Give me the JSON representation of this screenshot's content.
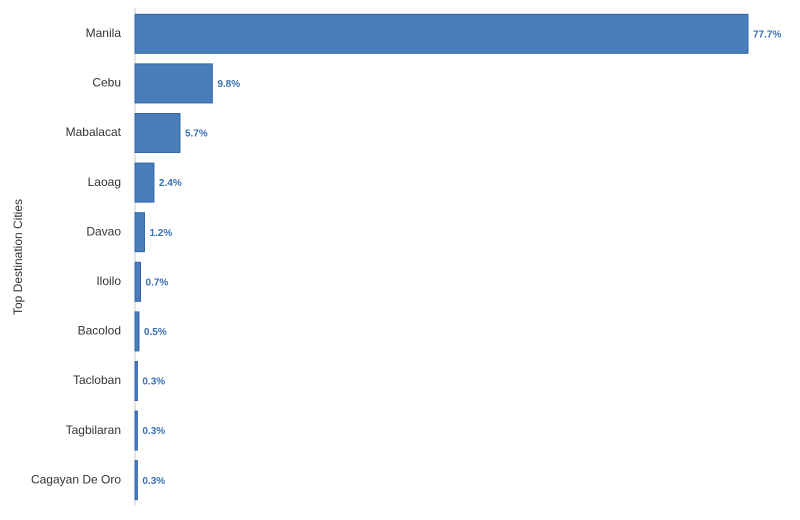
{
  "chart_data": {
    "type": "bar",
    "orientation": "horizontal",
    "y_label": "Top Destination Cities",
    "categories": [
      "Manila",
      "Cebu",
      "Mabalacat",
      "Laoag",
      "Davao",
      "Iloilo",
      "Bacolod",
      "Tacloban",
      "Tagbilaran",
      "Cagayan De Oro"
    ],
    "values": [
      77.7,
      9.8,
      5.7,
      2.4,
      1.2,
      0.7,
      0.5,
      0.3,
      0.3,
      0.3
    ],
    "value_labels": [
      "77.7%",
      "9.8%",
      "5.7%",
      "2.4%",
      "1.2%",
      "0.7%",
      "0.5%",
      "0.3%",
      "0.3%",
      "0.3%"
    ],
    "color": "#4a7ebb"
  }
}
